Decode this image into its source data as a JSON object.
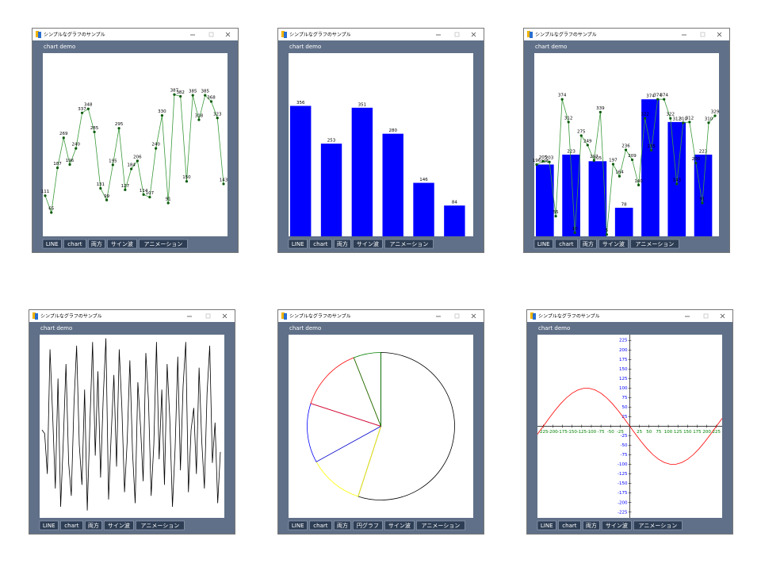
{
  "windows": [
    {
      "title": "シンプルなグラフのサンプル",
      "label": "chart demo",
      "buttons": [
        "LINE",
        "chart",
        "両方",
        "サイン波",
        "アニメーション"
      ],
      "chart": {
        "type": "line",
        "color": "#3c9a3c",
        "marker_color": "#0b5a0b",
        "data_labels": true,
        "ylim": [
          0,
          500
        ],
        "values": [
          111,
          65,
          187,
          269,
          196,
          240,
          337,
          348,
          285,
          131,
          99,
          195,
          295,
          127,
          184,
          206,
          114,
          107,
          240,
          330,
          91,
          387,
          382,
          150,
          385,
          318,
          385,
          368,
          323,
          143
        ]
      }
    },
    {
      "title": "シンプルなグラフのサンプル",
      "label": "chart demo",
      "buttons": [
        "LINE",
        "chart",
        "両方",
        "サイン波",
        "アニメーション"
      ],
      "chart": {
        "type": "bar",
        "color": "#0000ff",
        "data_labels": true,
        "ylim": [
          0,
          500
        ],
        "values": [
          356,
          253,
          351,
          280,
          146,
          84
        ]
      }
    },
    {
      "title": "シンプルなグラフのサンプル",
      "label": "chart demo",
      "buttons": [
        "LINE",
        "chart",
        "両方",
        "サイン波",
        "アニメーション"
      ],
      "chart": {
        "type": "bar_line",
        "ylim": [
          0,
          500
        ],
        "data_labels": true,
        "bars": {
          "color": "#0000ff",
          "values": [
            196,
            223,
            205,
            78,
            374,
            312,
            223
          ]
        },
        "line": {
          "color": "#3c9a3c",
          "marker_color": "#0b5a0b",
          "values": [
            196,
            205,
            203,
            55,
            374,
            312,
            10,
            275,
            249,
            207,
            339,
            5,
            197,
            164,
            236,
            209,
            140,
            322,
            235,
            374,
            374,
            322,
            143,
            310,
            312,
            200,
            91,
            310,
            329
          ]
        }
      }
    },
    {
      "title": "シンプルなグラフのサンプル",
      "label": "chart demo",
      "buttons": [
        "LINE",
        "chart",
        "両方",
        "サイン波",
        "アニメーション"
      ],
      "chart": {
        "type": "line",
        "color": "#000000",
        "data_labels": false,
        "ylim": [
          0,
          500
        ],
        "values": [
          240,
          230,
          120,
          460,
          280,
          80,
          380,
          30,
          210,
          420,
          150,
          60,
          310,
          470,
          200,
          90,
          350,
          20,
          260,
          480,
          170,
          400,
          110,
          330,
          490,
          50,
          230,
          390,
          140,
          460,
          300,
          70,
          210,
          430,
          180,
          40,
          370,
          250,
          100,
          450,
          320,
          60,
          200,
          480,
          160,
          350,
          90,
          420,
          270,
          30,
          190,
          440,
          130,
          360,
          480,
          70,
          240,
          300,
          120,
          410,
          210,
          80,
          340,
          470,
          150,
          260,
          40,
          180
        ]
      }
    },
    {
      "title": "シンプルなグラフのサンプル",
      "label": "chart demo",
      "buttons": [
        "LINE",
        "chart",
        "両方",
        "円グラフ",
        "サイン波",
        "アニメーション"
      ],
      "chart": {
        "type": "pie",
        "values": [
          55,
          12,
          13,
          14,
          6
        ],
        "colors": [
          "#000000",
          "#ffff00",
          "#0000ff",
          "#ff0000",
          "#008000"
        ]
      }
    },
    {
      "title": "シンプルなグラフのサンプル",
      "label": "chart demo",
      "buttons": [
        "LINE",
        "chart",
        "両方",
        "サイン波",
        "アニメーション"
      ],
      "chart": {
        "type": "function",
        "color": "#ff0000",
        "x_label_color": "#008000",
        "y_label_color": "#0000ff",
        "xlim": [
          -240,
          240
        ],
        "ylim": [
          -240,
          240
        ],
        "x": [
          -240,
          -225,
          -210,
          -195,
          -180,
          -165,
          -150,
          -135,
          -120,
          -105,
          -90,
          -75,
          -60,
          -45,
          -30,
          -15,
          0,
          15,
          30,
          45,
          60,
          75,
          90,
          105,
          120,
          135,
          150,
          165,
          180,
          195,
          210,
          225,
          240
        ],
        "values": [
          -20.8,
          0,
          20.8,
          40.7,
          58.8,
          74.3,
          86.6,
          95.1,
          99.5,
          99.5,
          95.1,
          86.6,
          74.3,
          58.8,
          40.7,
          20.8,
          0,
          -20.8,
          -40.7,
          -58.8,
          -74.3,
          -86.6,
          -95.1,
          -99.5,
          -99.5,
          -95.1,
          -86.6,
          -74.3,
          -58.8,
          -40.7,
          -20.8,
          0,
          20.8
        ],
        "xticks": [
          -225,
          -200,
          -175,
          -150,
          -125,
          -100,
          -75,
          -50,
          -25,
          25,
          50,
          75,
          100,
          125,
          150,
          175,
          200,
          225
        ],
        "yticks": [
          225,
          200,
          175,
          150,
          125,
          100,
          75,
          50,
          25,
          -25,
          -50,
          -75,
          -100,
          -125,
          -150,
          -175,
          -200,
          -225
        ]
      }
    }
  ]
}
